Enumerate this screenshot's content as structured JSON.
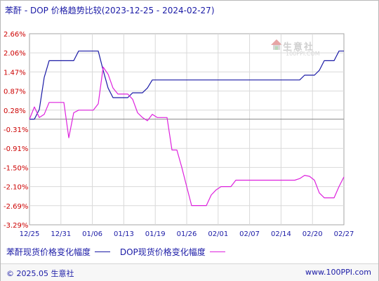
{
  "title": "苯酐 - DOP 价格趋势比较(2023-12-25 - 2024-02-27)",
  "colors": {
    "series1": "#1a1aa6",
    "series2": "#dd22dd",
    "axis_text": "#cc0000",
    "grid": "#d9d9d9",
    "zero_line": "#888888"
  },
  "watermark": {
    "text": "生意社",
    "sub": "100PPI.COM",
    "icon": "house-logo-icon"
  },
  "footer": {
    "copyright": "© 2025.05 生意社",
    "site": "www.100PPI.com"
  },
  "chart_data": {
    "type": "line",
    "title": "苯酐 - DOP 价格趋势比较(2023-12-25 - 2024-02-27)",
    "xlabel": "",
    "ylabel": "",
    "x_ticks": [
      "12/25",
      "12/31",
      "01/06",
      "01/13",
      "01/19",
      "01/26",
      "02/01",
      "02/07",
      "02/14",
      "02/20",
      "02/27"
    ],
    "y_ticks": [
      "2.66%",
      "2.06%",
      "1.47%",
      "0.87%",
      "0.28%",
      "-0.31%",
      "-0.91%",
      "-1.50%",
      "-2.10%",
      "-2.69%",
      "-3.29%"
    ],
    "ylim": [
      -3.29,
      2.66
    ],
    "x_range_days": [
      0,
      64
    ],
    "grid": true,
    "legend_position": "bottom",
    "series": [
      {
        "name": "苯酐现货价格变化幅度",
        "points": [
          [
            0,
            0
          ],
          [
            1,
            0
          ],
          [
            2,
            0.3
          ],
          [
            3,
            1.3
          ],
          [
            4,
            1.82
          ],
          [
            5,
            1.82
          ],
          [
            6,
            1.82
          ],
          [
            7,
            1.82
          ],
          [
            8,
            1.82
          ],
          [
            9,
            1.82
          ],
          [
            10,
            2.12
          ],
          [
            11,
            2.12
          ],
          [
            12,
            2.12
          ],
          [
            13,
            2.12
          ],
          [
            14,
            2.12
          ],
          [
            15,
            1.52
          ],
          [
            16,
            0.97
          ],
          [
            17,
            0.67
          ],
          [
            18,
            0.67
          ],
          [
            19,
            0.67
          ],
          [
            20,
            0.67
          ],
          [
            21,
            0.82
          ],
          [
            22,
            0.82
          ],
          [
            23,
            0.82
          ],
          [
            24,
            0.97
          ],
          [
            25,
            1.22
          ],
          [
            26,
            1.22
          ],
          [
            27,
            1.22
          ],
          [
            28,
            1.22
          ],
          [
            29,
            1.22
          ],
          [
            30,
            1.22
          ],
          [
            31,
            1.22
          ],
          [
            32,
            1.22
          ],
          [
            33,
            1.22
          ],
          [
            34,
            1.22
          ],
          [
            35,
            1.22
          ],
          [
            36,
            1.22
          ],
          [
            37,
            1.22
          ],
          [
            38,
            1.22
          ],
          [
            39,
            1.22
          ],
          [
            40,
            1.22
          ],
          [
            41,
            1.22
          ],
          [
            42,
            1.22
          ],
          [
            43,
            1.22
          ],
          [
            44,
            1.22
          ],
          [
            45,
            1.22
          ],
          [
            46,
            1.22
          ],
          [
            47,
            1.22
          ],
          [
            48,
            1.22
          ],
          [
            49,
            1.22
          ],
          [
            50,
            1.22
          ],
          [
            51,
            1.22
          ],
          [
            52,
            1.22
          ],
          [
            53,
            1.22
          ],
          [
            54,
            1.22
          ],
          [
            55,
            1.22
          ],
          [
            56,
            1.37
          ],
          [
            57,
            1.37
          ],
          [
            58,
            1.37
          ],
          [
            59,
            1.52
          ],
          [
            60,
            1.82
          ],
          [
            61,
            1.82
          ],
          [
            62,
            1.82
          ],
          [
            63,
            2.12
          ],
          [
            64,
            2.12
          ]
        ]
      },
      {
        "name": "DOP现货价格变化幅度",
        "points": [
          [
            0,
            0
          ],
          [
            1,
            0.38
          ],
          [
            2,
            0.05
          ],
          [
            3,
            0.15
          ],
          [
            4,
            0.52
          ],
          [
            5,
            0.52
          ],
          [
            6,
            0.52
          ],
          [
            7,
            0.52
          ],
          [
            8,
            -0.58
          ],
          [
            9,
            0.2
          ],
          [
            10,
            0.28
          ],
          [
            11,
            0.28
          ],
          [
            12,
            0.28
          ],
          [
            13,
            0.28
          ],
          [
            14,
            0.48
          ],
          [
            15,
            1.62
          ],
          [
            16,
            1.4
          ],
          [
            17,
            0.97
          ],
          [
            18,
            0.78
          ],
          [
            19,
            0.78
          ],
          [
            20,
            0.78
          ],
          [
            21,
            0.62
          ],
          [
            22,
            0.2
          ],
          [
            23,
            0.05
          ],
          [
            24,
            -0.05
          ],
          [
            25,
            0.15
          ],
          [
            26,
            0.05
          ],
          [
            27,
            0.05
          ],
          [
            28,
            0.05
          ],
          [
            29,
            -0.96
          ],
          [
            30,
            -0.96
          ],
          [
            31,
            -1.5
          ],
          [
            32,
            -2.1
          ],
          [
            33,
            -2.69
          ],
          [
            34,
            -2.69
          ],
          [
            35,
            -2.69
          ],
          [
            36,
            -2.69
          ],
          [
            37,
            -2.36
          ],
          [
            38,
            -2.2
          ],
          [
            39,
            -2.1
          ],
          [
            40,
            -2.1
          ],
          [
            41,
            -2.1
          ],
          [
            42,
            -1.9
          ],
          [
            43,
            -1.9
          ],
          [
            44,
            -1.9
          ],
          [
            45,
            -1.9
          ],
          [
            46,
            -1.9
          ],
          [
            47,
            -1.9
          ],
          [
            48,
            -1.9
          ],
          [
            49,
            -1.9
          ],
          [
            50,
            -1.9
          ],
          [
            51,
            -1.9
          ],
          [
            52,
            -1.9
          ],
          [
            53,
            -1.9
          ],
          [
            54,
            -1.9
          ],
          [
            55,
            -1.85
          ],
          [
            56,
            -1.75
          ],
          [
            57,
            -1.78
          ],
          [
            58,
            -1.9
          ],
          [
            59,
            -2.3
          ],
          [
            60,
            -2.45
          ],
          [
            61,
            -2.45
          ],
          [
            62,
            -2.45
          ],
          [
            63,
            -2.1
          ],
          [
            64,
            -1.8
          ]
        ]
      }
    ]
  }
}
